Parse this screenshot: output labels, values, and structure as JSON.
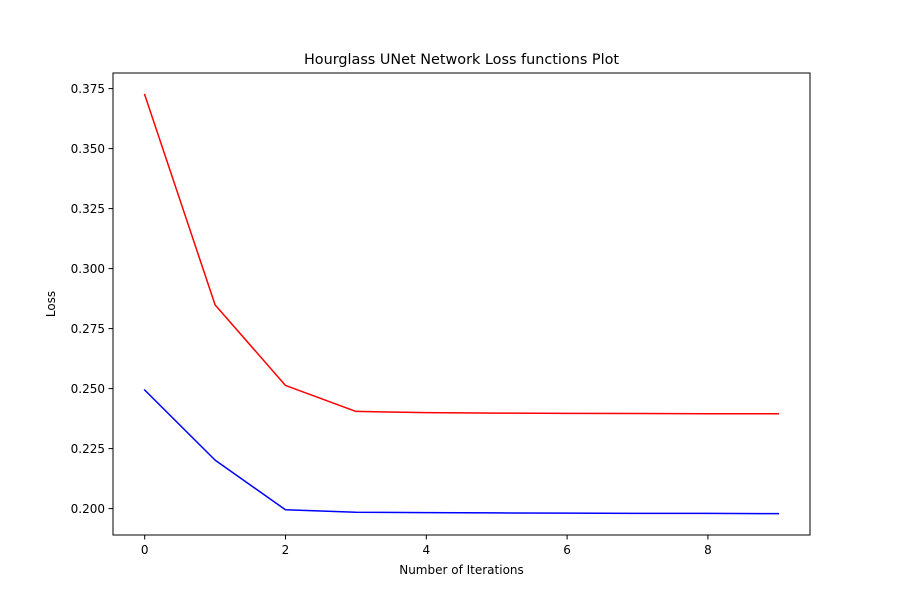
{
  "chart_data": {
    "type": "line",
    "title": "Hourglass UNet Network Loss functions Plot",
    "xlabel": "Number of Iterations",
    "ylabel": "Loss",
    "xlim": [
      -0.45,
      9.45
    ],
    "ylim": [
      0.189,
      0.3815
    ],
    "x_ticks": [
      0,
      2,
      4,
      6,
      8
    ],
    "y_ticks": [
      0.2,
      0.225,
      0.25,
      0.275,
      0.3,
      0.325,
      0.35,
      0.375
    ],
    "grid": false,
    "legend": "none",
    "x": [
      0,
      1,
      2,
      3,
      4,
      5,
      6,
      7,
      8,
      9
    ],
    "series": [
      {
        "color": "#ff0000",
        "values": [
          0.3725,
          0.2849,
          0.2513,
          0.2405,
          0.24,
          0.2398,
          0.2397,
          0.2396,
          0.2395,
          0.2395
        ]
      },
      {
        "color": "#0000ff",
        "values": [
          0.2494,
          0.2202,
          0.1995,
          0.1985,
          0.1983,
          0.1982,
          0.1981,
          0.198,
          0.198,
          0.1979
        ]
      }
    ]
  }
}
